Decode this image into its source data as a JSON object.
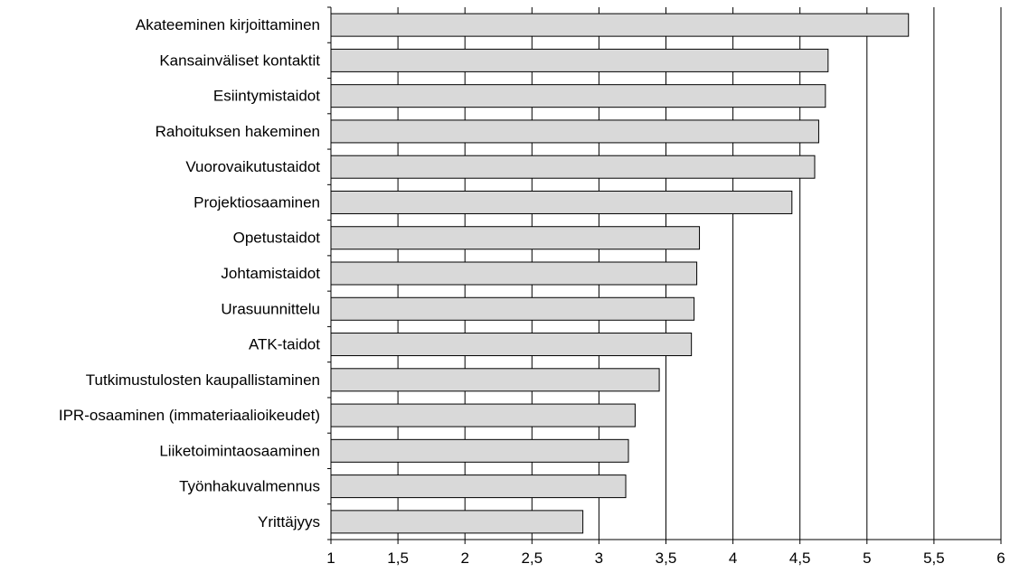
{
  "chart_data": {
    "type": "bar",
    "orientation": "horizontal",
    "categories": [
      "Akateeminen kirjoittaminen",
      "Kansainväliset kontaktit",
      "Esiintymistaidot",
      "Rahoituksen hakeminen",
      "Vuorovaikutustaidot",
      "Projektiosaaminen",
      "Opetustaidot",
      "Johtamistaidot",
      "Urasuunnittelu",
      "ATK-taidot",
      "Tutkimustulosten kaupallistaminen",
      "IPR-osaaminen (immateriaalioikeudet)",
      "Liiketoimintaosaaminen",
      "Työnhakuvalmennus",
      "Yrittäjyys"
    ],
    "values": [
      5.31,
      4.71,
      4.69,
      4.64,
      4.61,
      4.44,
      3.75,
      3.73,
      3.71,
      3.69,
      3.45,
      3.27,
      3.22,
      3.2,
      2.88
    ],
    "xlim": [
      1,
      6
    ],
    "ticks": [
      "1",
      "1,5",
      "2",
      "2,5",
      "3",
      "3,5",
      "4",
      "4,5",
      "5",
      "5,5",
      "6"
    ],
    "tick_values": [
      1,
      1.5,
      2,
      2.5,
      3,
      3.5,
      4,
      4.5,
      5,
      5.5,
      6
    ],
    "grid": "vertical",
    "colors": {
      "bar_fill": "#d9d9d9",
      "bar_stroke": "#000000",
      "grid": "#000000"
    }
  }
}
